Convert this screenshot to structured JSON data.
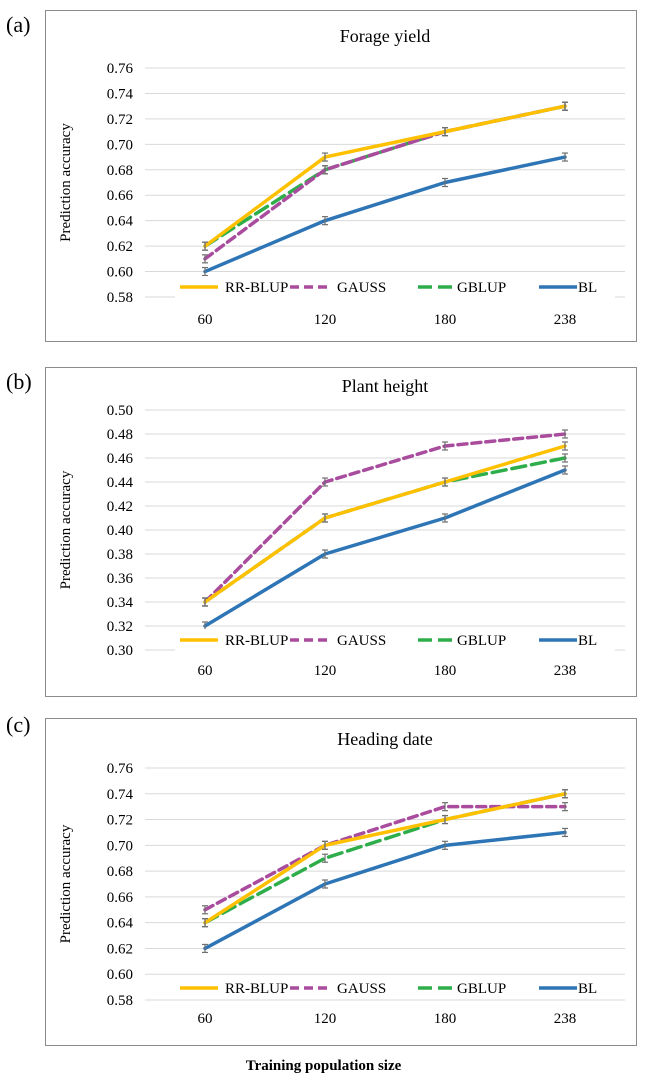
{
  "figure": {
    "xlabel_overall": "Training population size"
  },
  "chart_data": [
    {
      "panel": "(a)",
      "type": "line",
      "title": "Forage yield",
      "xlabel": "",
      "ylabel": "Prediction accuracy",
      "categories": [
        "60",
        "120",
        "180",
        "238"
      ],
      "ylim": [
        0.58,
        0.76
      ],
      "yticks": [
        "0.58",
        "0.60",
        "0.62",
        "0.64",
        "0.66",
        "0.68",
        "0.70",
        "0.72",
        "0.74",
        "0.76"
      ],
      "grid": true,
      "legend_position": "bottom-inside",
      "series": [
        {
          "name": "RR-BLUP",
          "color": "#FFC000",
          "dash": "solid",
          "values": [
            0.62,
            0.69,
            0.71,
            0.73
          ]
        },
        {
          "name": "GAUSS",
          "color": "#A94C9E",
          "dash": "dash",
          "values": [
            0.61,
            0.68,
            0.71,
            0.73
          ]
        },
        {
          "name": "GBLUP",
          "color": "#2EAD4B",
          "dash": "longdash",
          "values": [
            0.62,
            0.68,
            0.71,
            0.73
          ]
        },
        {
          "name": "BL",
          "color": "#2E75B6",
          "dash": "solid",
          "values": [
            0.6,
            0.64,
            0.67,
            0.69
          ]
        }
      ]
    },
    {
      "panel": "(b)",
      "type": "line",
      "title": "Plant height",
      "xlabel": "",
      "ylabel": "Prediction accuracy",
      "categories": [
        "60",
        "120",
        "180",
        "238"
      ],
      "ylim": [
        0.3,
        0.5
      ],
      "yticks": [
        "0.30",
        "0.32",
        "0.34",
        "0.36",
        "0.38",
        "0.40",
        "0.42",
        "0.44",
        "0.46",
        "0.48",
        "0.50"
      ],
      "grid": true,
      "legend_position": "bottom-inside",
      "series": [
        {
          "name": "RR-BLUP",
          "color": "#FFC000",
          "dash": "solid",
          "values": [
            0.34,
            0.41,
            0.44,
            0.47
          ]
        },
        {
          "name": "GAUSS",
          "color": "#A94C9E",
          "dash": "dash",
          "values": [
            0.34,
            0.44,
            0.47,
            0.48
          ]
        },
        {
          "name": "GBLUP",
          "color": "#2EAD4B",
          "dash": "longdash",
          "values": [
            0.34,
            0.41,
            0.44,
            0.46
          ]
        },
        {
          "name": "BL",
          "color": "#2E75B6",
          "dash": "solid",
          "values": [
            0.32,
            0.38,
            0.41,
            0.45
          ]
        }
      ]
    },
    {
      "panel": "(c)",
      "type": "line",
      "title": "Heading date",
      "xlabel": "",
      "ylabel": "Prediction accuracy",
      "categories": [
        "60",
        "120",
        "180",
        "238"
      ],
      "ylim": [
        0.58,
        0.76
      ],
      "yticks": [
        "0.58",
        "0.60",
        "0.62",
        "0.64",
        "0.66",
        "0.68",
        "0.70",
        "0.72",
        "0.74",
        "0.76"
      ],
      "grid": true,
      "legend_position": "bottom-inside",
      "series": [
        {
          "name": "RR-BLUP",
          "color": "#FFC000",
          "dash": "solid",
          "values": [
            0.64,
            0.7,
            0.72,
            0.74
          ]
        },
        {
          "name": "GAUSS",
          "color": "#A94C9E",
          "dash": "dash",
          "values": [
            0.65,
            0.7,
            0.73,
            0.73
          ]
        },
        {
          "name": "GBLUP",
          "color": "#2EAD4B",
          "dash": "longdash",
          "values": [
            0.64,
            0.69,
            0.72,
            0.74
          ]
        },
        {
          "name": "BL",
          "color": "#2E75B6",
          "dash": "solid",
          "values": [
            0.62,
            0.67,
            0.7,
            0.71
          ]
        }
      ]
    }
  ]
}
